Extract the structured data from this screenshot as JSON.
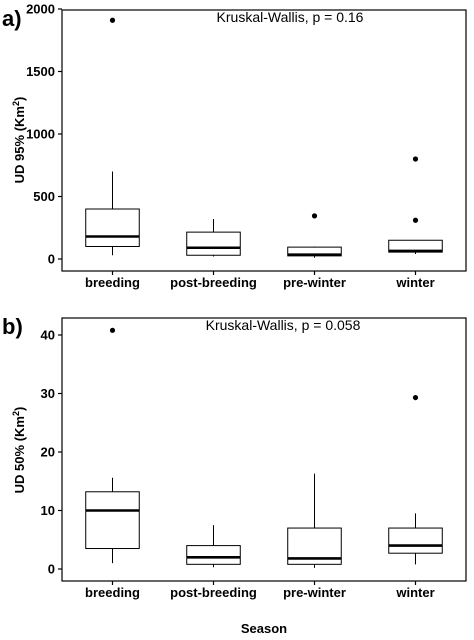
{
  "xlabel": "Season",
  "chart_data": [
    {
      "type": "box",
      "panel": "a)",
      "annotation": "Kruskal-Wallis, p = 0.16",
      "ylabel": "UD 95% (Km",
      "ylabel_sup": "2",
      "ylabel_end": ")",
      "ylim": [
        0,
        2000
      ],
      "yticks": [
        0,
        500,
        1000,
        1500,
        2000
      ],
      "categories": [
        "breeding",
        "post-breeding",
        "pre-winter",
        "winter"
      ],
      "boxes": [
        {
          "category": "breeding",
          "whisker_low": 30,
          "q1": 100,
          "median": 180,
          "q3": 400,
          "whisker_high": 700,
          "outliers": [
            1910
          ]
        },
        {
          "category": "post-breeding",
          "whisker_low": 20,
          "q1": 30,
          "median": 90,
          "q3": 215,
          "whisker_high": 320,
          "outliers": []
        },
        {
          "category": "pre-winter",
          "whisker_low": 10,
          "q1": 25,
          "median": 35,
          "q3": 95,
          "whisker_high": 100,
          "outliers": [
            345
          ]
        },
        {
          "category": "winter",
          "whisker_low": 40,
          "q1": 55,
          "median": 65,
          "q3": 150,
          "whisker_high": 150,
          "outliers": [
            310,
            800
          ]
        }
      ],
      "grid": false,
      "colors": {
        "box_fill": "#ffffff",
        "stroke": "#000000"
      }
    },
    {
      "type": "box",
      "panel": "b)",
      "annotation": "Kruskal-Wallis, p = 0.058",
      "ylabel": "UD 50% (Km",
      "ylabel_sup": "2",
      "ylabel_end": ")",
      "ylim": [
        0,
        42
      ],
      "yticks": [
        0,
        10,
        20,
        30,
        40
      ],
      "categories": [
        "breeding",
        "post-breeding",
        "pre-winter",
        "winter"
      ],
      "boxes": [
        {
          "category": "breeding",
          "whisker_low": 1,
          "q1": 3.5,
          "median": 10,
          "q3": 13.2,
          "whisker_high": 15.6,
          "outliers": [
            40.8
          ]
        },
        {
          "category": "post-breeding",
          "whisker_low": 0.3,
          "q1": 0.8,
          "median": 2,
          "q3": 4,
          "whisker_high": 7.5,
          "outliers": []
        },
        {
          "category": "pre-winter",
          "whisker_low": 0.2,
          "q1": 0.8,
          "median": 1.8,
          "q3": 7,
          "whisker_high": 16.3,
          "outliers": []
        },
        {
          "category": "winter",
          "whisker_low": 0.8,
          "q1": 2.7,
          "median": 4,
          "q3": 7,
          "whisker_high": 9.5,
          "outliers": [
            29.3
          ]
        }
      ],
      "grid": false,
      "colors": {
        "box_fill": "#ffffff",
        "stroke": "#000000"
      }
    }
  ]
}
